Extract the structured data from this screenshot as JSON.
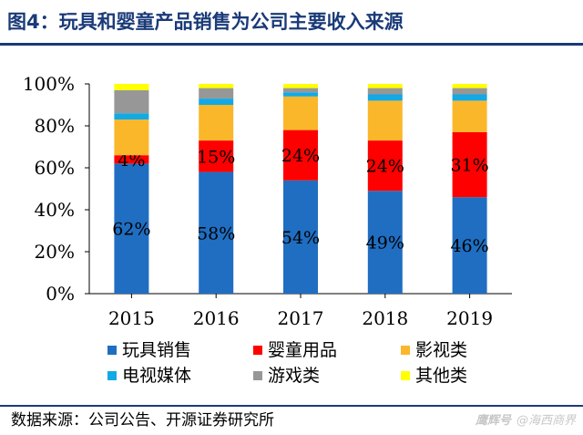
{
  "title": "图4：玩具和婴童产品销售为公司主要收入来源",
  "source": "数据来源：公司公告、开源证券研究所",
  "watermark": {
    "logo": "鹰辉号",
    "text": "@海西商界"
  },
  "colors": {
    "title": "#1a3a78",
    "series": [
      "#1f6ec2",
      "#ff0000",
      "#fbb72a",
      "#12a9e5",
      "#979797",
      "#ffff00"
    ]
  },
  "chart_data": {
    "type": "bar",
    "stacked": true,
    "categories": [
      "2015",
      "2016",
      "2017",
      "2018",
      "2019"
    ],
    "ylim": [
      0,
      100
    ],
    "yticks": [
      0,
      20,
      40,
      60,
      80,
      100
    ],
    "ytick_labels": [
      "0%",
      "20%",
      "40%",
      "60%",
      "80%",
      "100%"
    ],
    "legend_position": "bottom",
    "grid": false,
    "series": [
      {
        "name": "玩具销售",
        "values": [
          62,
          58,
          54,
          49,
          46
        ],
        "labels": [
          "62%",
          "58%",
          "54%",
          "49%",
          "46%"
        ]
      },
      {
        "name": "婴童用品",
        "values": [
          4,
          15,
          24,
          24,
          31
        ],
        "labels": [
          "4%",
          "15%",
          "24%",
          "24%",
          "31%"
        ]
      },
      {
        "name": "影视类",
        "values": [
          17,
          17,
          16,
          19,
          15
        ],
        "labels": []
      },
      {
        "name": "电视媒体",
        "values": [
          3,
          3,
          2,
          3,
          3
        ],
        "labels": []
      },
      {
        "name": "游戏类",
        "values": [
          11,
          5,
          2,
          3,
          3
        ],
        "labels": []
      },
      {
        "name": "其他类",
        "values": [
          3,
          2,
          2,
          2,
          2
        ],
        "labels": []
      }
    ]
  }
}
